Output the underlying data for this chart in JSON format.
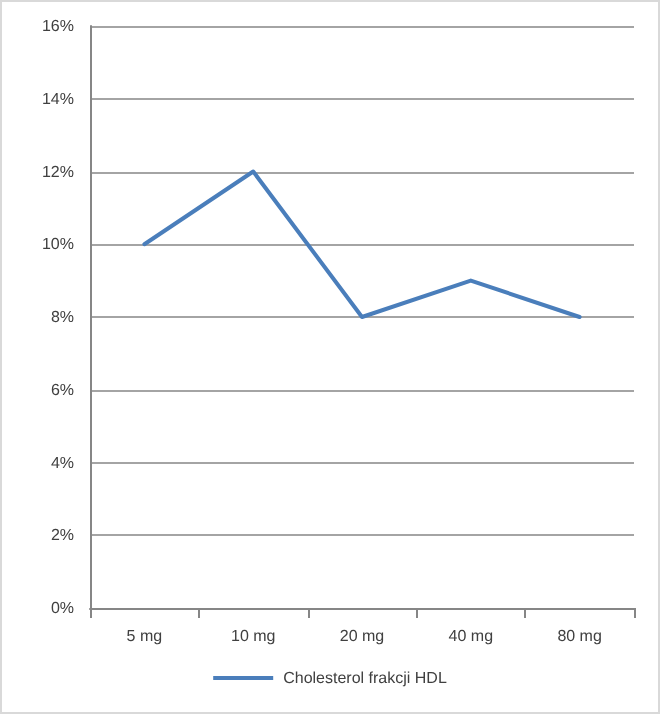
{
  "chart_data": {
    "type": "line",
    "categories": [
      "5 mg",
      "10 mg",
      "20 mg",
      "40 mg",
      "80 mg"
    ],
    "series": [
      {
        "name": "Cholesterol frakcji HDL",
        "color": "#4a7ebb",
        "values": [
          10,
          12,
          8,
          9,
          8
        ]
      }
    ],
    "ylim": [
      0,
      16
    ],
    "yticks": [
      {
        "value": 0,
        "label": "0%"
      },
      {
        "value": 2,
        "label": "2%"
      },
      {
        "value": 4,
        "label": "4%"
      },
      {
        "value": 6,
        "label": "6%"
      },
      {
        "value": 8,
        "label": "8%"
      },
      {
        "value": 10,
        "label": "10%"
      },
      {
        "value": 12,
        "label": "12%"
      },
      {
        "value": 14,
        "label": "14%"
      },
      {
        "value": 16,
        "label": "16%"
      }
    ],
    "grid": "y",
    "legend": "bottom",
    "marker": "none",
    "line_style": "solid"
  }
}
